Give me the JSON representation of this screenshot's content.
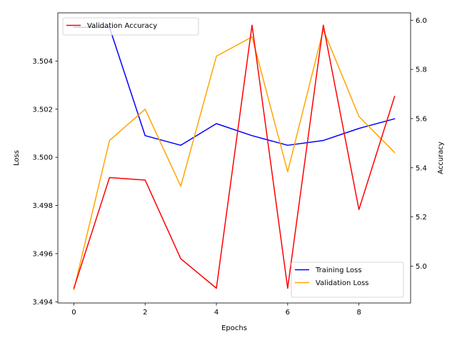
{
  "chart_data": {
    "type": "line",
    "xlabel": "Epochs",
    "ylabel_left": "Loss",
    "ylabel_right": "Accuracy",
    "x": [
      0,
      1,
      2,
      3,
      4,
      5,
      6,
      7,
      8,
      9
    ],
    "xlim": [
      -0.45,
      9.45
    ],
    "ylim_left": [
      3.49395,
      3.506
    ],
    "ylim_right": [
      4.85,
      6.03
    ],
    "x_ticks": [
      "0",
      "2",
      "4",
      "6",
      "8"
    ],
    "y_left_ticks": [
      "3.494",
      "3.496",
      "3.498",
      "3.500",
      "3.502",
      "3.504"
    ],
    "y_right_ticks": [
      "5.0",
      "5.2",
      "5.4",
      "5.6",
      "5.8",
      "6.0"
    ],
    "grid": false,
    "series": [
      {
        "name": "Training Loss",
        "axis": "left",
        "color": "#0000ff",
        "values": [
          3.5054,
          3.5054,
          3.5009,
          3.5005,
          3.5014,
          3.5009,
          3.5005,
          3.5007,
          3.5012,
          3.5016
        ]
      },
      {
        "name": "Validation Loss",
        "axis": "left",
        "color": "#ffa500",
        "values": [
          3.4945,
          3.5007,
          3.502,
          3.4988,
          3.5042,
          3.505,
          3.4994,
          3.5053,
          3.5017,
          3.5002
        ]
      },
      {
        "name": "Validation Accuracy",
        "axis": "right",
        "color": "#ff0000",
        "values": [
          4.91,
          5.36,
          5.35,
          5.03,
          4.91,
          5.98,
          4.91,
          5.98,
          5.23,
          5.69
        ]
      }
    ],
    "legends": [
      {
        "placement": "upper-left",
        "entries": [
          "Validation Accuracy"
        ]
      },
      {
        "placement": "lower-right",
        "entries": [
          "Training Loss",
          "Validation Loss"
        ]
      }
    ]
  }
}
